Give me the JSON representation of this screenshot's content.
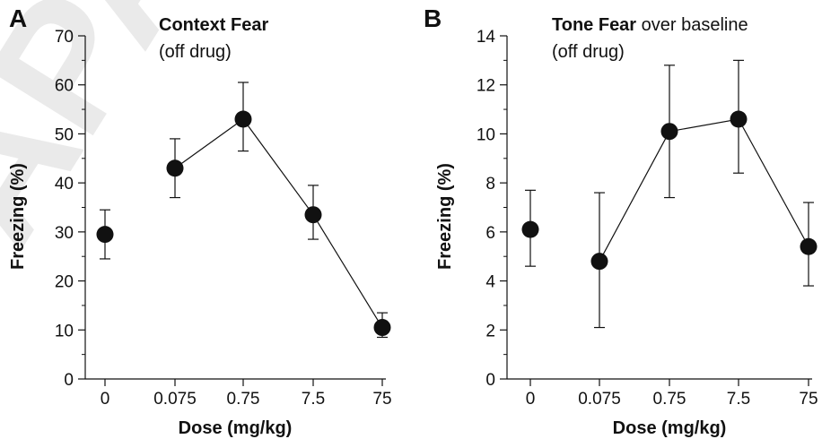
{
  "watermark": "APA",
  "chart_data": [
    {
      "type": "line",
      "panel": "A",
      "title_bold": "Context Fear",
      "title_rest": "",
      "title_line2": "(off drug)",
      "xlabel": "Dose (mg/kg)",
      "ylabel": "Freezing (%)",
      "categories": [
        "0",
        "0.075",
        "0.75",
        "7.5",
        "75"
      ],
      "ylim": [
        0,
        70
      ],
      "yticks": [
        "0",
        "10",
        "20",
        "30",
        "40",
        "50",
        "60",
        "70"
      ],
      "series": [
        {
          "values": [
            29.5,
            43,
            53,
            33.5,
            10.5
          ],
          "err_low": [
            24.5,
            37,
            46.5,
            28.5,
            8.5
          ],
          "err_high": [
            34.5,
            49,
            60.5,
            39.5,
            13.5
          ],
          "connected": [
            false,
            true,
            true,
            true,
            true
          ]
        }
      ],
      "grid": false
    },
    {
      "type": "line",
      "panel": "B",
      "title_bold": "Tone Fear",
      "title_rest": " over baseline",
      "title_line2": "(off drug)",
      "xlabel": "Dose (mg/kg)",
      "ylabel": "Freezing (%)",
      "categories": [
        "0",
        "0.075",
        "0.75",
        "7.5",
        "75"
      ],
      "ylim": [
        0,
        14
      ],
      "yticks": [
        "0",
        "2",
        "4",
        "6",
        "8",
        "10",
        "12",
        "14"
      ],
      "series": [
        {
          "values": [
            6.1,
            4.8,
            10.1,
            10.6,
            5.4
          ],
          "err_low": [
            4.6,
            2.1,
            7.4,
            8.4,
            3.8
          ],
          "err_high": [
            7.7,
            7.6,
            12.8,
            13.0,
            7.2
          ],
          "connected": [
            false,
            true,
            true,
            true,
            true
          ]
        }
      ],
      "grid": false
    }
  ]
}
